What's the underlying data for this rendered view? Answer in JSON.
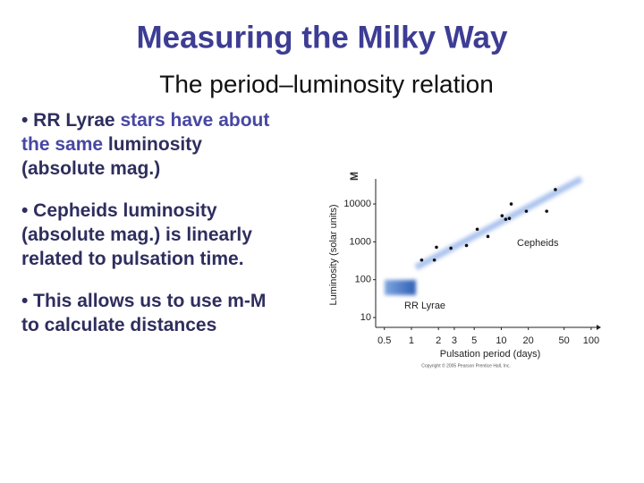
{
  "title": "Measuring the Milky Way",
  "subtitle": "The period–luminosity relation",
  "bullets": [
    {
      "lines": [
        [
          {
            "text": "• RR Lyrae ",
            "color": "#2e2e5e"
          },
          {
            "text": "stars have about",
            "color": "#4747a3"
          }
        ],
        [
          {
            "text": "the same ",
            "color": "#4747a3"
          },
          {
            "text": "luminosity",
            "color": "#2e2e5e"
          }
        ],
        [
          {
            "text": "(absolute mag.)",
            "color": "#2e2e5e"
          }
        ]
      ]
    },
    {
      "lines": [
        [
          {
            "text": "• Cepheids luminosity",
            "color": "#2e2e5e"
          }
        ],
        [
          {
            "text": "(absolute mag.) is linearly",
            "color": "#2e2e5e"
          }
        ],
        [
          {
            "text": "related to pulsation time.",
            "color": "#2e2e5e"
          }
        ]
      ]
    },
    {
      "lines": [
        [
          {
            "text": "• This allows us to use m-M",
            "color": "#2e2e5e"
          }
        ],
        [
          {
            "text": "to calculate distances",
            "color": "#2e2e5e"
          }
        ]
      ]
    }
  ],
  "chart_data": {
    "type": "scatter",
    "axis_note": "M",
    "x_label": "Pulsation period (days)",
    "y_label": "Luminosity (solar units)",
    "x_scale": "log",
    "y_scale": "log",
    "xlim": [
      0.4,
      115
    ],
    "ylim": [
      5.5,
      46000
    ],
    "xticks": [
      0.5,
      1,
      2,
      3,
      5,
      10,
      20,
      50,
      100
    ],
    "yticks": [
      10,
      100,
      1000,
      10000
    ],
    "color": "#111111",
    "x": [
      1.3,
      1.9,
      1.8,
      2.75,
      4.1,
      5.4,
      7.1,
      10.2,
      11.2,
      12.9,
      12.3,
      19,
      32,
      40
    ],
    "y": [
      330,
      720,
      330,
      680,
      800,
      2150,
      1390,
      4900,
      3940,
      10000,
      4160,
      6440,
      6440,
      24000
    ],
    "annotations": [
      "Cepheids",
      "RR Lyrae"
    ],
    "credit": "Copyright © 2005 Pearson Prentice Hall, Inc."
  }
}
